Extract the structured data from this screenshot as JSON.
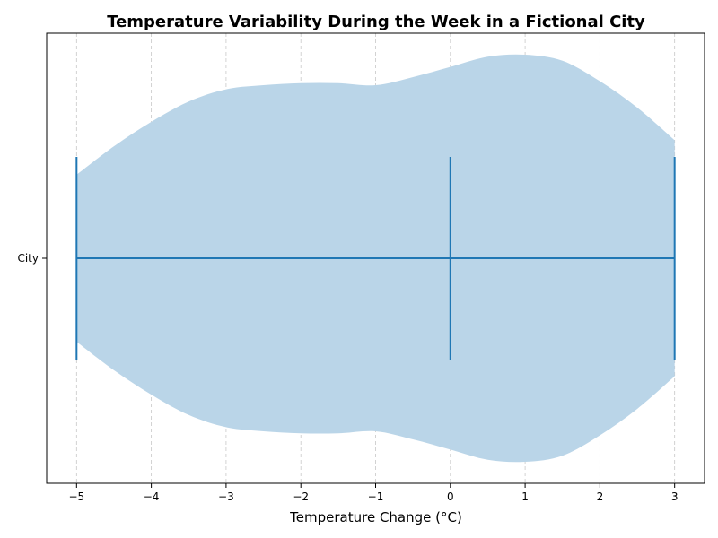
{
  "chart_data": {
    "type": "violin",
    "title": "Temperature Variability During the Week in a Fictional City",
    "xlabel": "Temperature Change (°C)",
    "ylabel": "",
    "xlim": [
      -5.4,
      3.4
    ],
    "xticks": [
      -5,
      -4,
      -3,
      -2,
      -1,
      0,
      1,
      2,
      3
    ],
    "xtick_labels": [
      "−5",
      "−4",
      "−3",
      "−2",
      "−1",
      "0",
      "1",
      "2",
      "3"
    ],
    "categories": [
      "City"
    ],
    "grid": "x",
    "fill_color": "#bad5e8",
    "line_color": "#1f77b4",
    "series": [
      {
        "category": "City",
        "min": -5,
        "median": 0,
        "max": 3,
        "density_profile": {
          "x": [
            -5,
            -4.5,
            -4,
            -3.5,
            -3,
            -2.5,
            -2,
            -1.5,
            -1,
            -0.5,
            0,
            0.5,
            1,
            1.5,
            2,
            2.5,
            3
          ],
          "half_width": [
            0.41,
            0.55,
            0.67,
            0.77,
            0.83,
            0.85,
            0.86,
            0.86,
            0.85,
            0.89,
            0.94,
            0.99,
            1.0,
            0.97,
            0.87,
            0.74,
            0.58
          ]
        }
      }
    ]
  }
}
